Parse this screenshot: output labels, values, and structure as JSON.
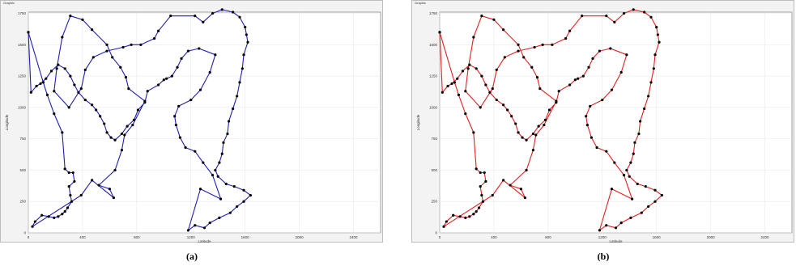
{
  "chart_data": [
    {
      "type": "line",
      "panel_title": "Graphic",
      "caption": "(a)",
      "xlabel": "Latitude",
      "ylabel": "Longitude",
      "xlim": [
        0,
        2600
      ],
      "ylim": [
        0,
        1760
      ],
      "xticks": [
        "0",
        "400",
        "800",
        "1200",
        "1600",
        "2000",
        "2400",
        "2800"
      ],
      "xtick_values": [
        0,
        400,
        800,
        1200,
        1600,
        2000,
        2400,
        2800
      ],
      "yticks": [
        "0",
        "250",
        "500",
        "750",
        "1000",
        "1250",
        "1500",
        "1750"
      ],
      "ytick_values": [
        0,
        250,
        500,
        750,
        1000,
        1250,
        1500,
        1750
      ],
      "grid": true,
      "line_color": "#1f1fb0",
      "route": [
        [
          0,
          1600
        ],
        [
          110,
          1200
        ],
        [
          140,
          1100
        ],
        [
          190,
          950
        ],
        [
          250,
          800
        ],
        [
          270,
          510
        ],
        [
          300,
          480
        ],
        [
          330,
          480
        ],
        [
          340,
          410
        ],
        [
          300,
          370
        ],
        [
          310,
          300
        ],
        [
          320,
          250
        ],
        [
          290,
          200
        ],
        [
          270,
          170
        ],
        [
          250,
          150
        ],
        [
          220,
          130
        ],
        [
          190,
          120
        ],
        [
          150,
          130
        ],
        [
          100,
          140
        ],
        [
          50,
          90
        ],
        [
          30,
          50
        ],
        [
          390,
          300
        ],
        [
          470,
          420
        ],
        [
          630,
          280
        ],
        [
          600,
          350
        ],
        [
          520,
          380
        ],
        [
          640,
          500
        ],
        [
          690,
          660
        ],
        [
          710,
          780
        ],
        [
          770,
          860
        ],
        [
          860,
          1050
        ],
        [
          740,
          1150
        ],
        [
          720,
          1240
        ],
        [
          680,
          1320
        ],
        [
          620,
          1400
        ],
        [
          580,
          1500
        ],
        [
          470,
          1620
        ],
        [
          400,
          1700
        ],
        [
          310,
          1730
        ],
        [
          250,
          1560
        ],
        [
          210,
          1310
        ],
        [
          190,
          1130
        ],
        [
          300,
          1000
        ],
        [
          390,
          1150
        ],
        [
          420,
          1300
        ],
        [
          480,
          1400
        ],
        [
          580,
          1450
        ],
        [
          700,
          1480
        ],
        [
          760,
          1500
        ],
        [
          830,
          1500
        ],
        [
          930,
          1550
        ],
        [
          960,
          1610
        ],
        [
          1050,
          1730
        ],
        [
          1230,
          1730
        ],
        [
          1290,
          1680
        ],
        [
          1360,
          1750
        ],
        [
          1430,
          1780
        ],
        [
          1510,
          1760
        ],
        [
          1560,
          1720
        ],
        [
          1600,
          1640
        ],
        [
          1610,
          1580
        ],
        [
          1620,
          1520
        ],
        [
          1590,
          1420
        ],
        [
          1580,
          1310
        ],
        [
          1560,
          1200
        ],
        [
          1540,
          1090
        ],
        [
          1510,
          990
        ],
        [
          1480,
          890
        ],
        [
          1470,
          790
        ],
        [
          1440,
          720
        ],
        [
          1430,
          630
        ],
        [
          1410,
          560
        ],
        [
          1380,
          500
        ],
        [
          1400,
          450
        ],
        [
          1460,
          390
        ],
        [
          1520,
          370
        ],
        [
          1590,
          340
        ],
        [
          1640,
          300
        ],
        [
          1590,
          250
        ],
        [
          1540,
          210
        ],
        [
          1490,
          160
        ],
        [
          1410,
          120
        ],
        [
          1340,
          80
        ],
        [
          1300,
          40
        ],
        [
          1230,
          60
        ],
        [
          1180,
          20
        ],
        [
          1270,
          350
        ],
        [
          1420,
          270
        ],
        [
          1360,
          460
        ],
        [
          1290,
          560
        ],
        [
          1230,
          650
        ],
        [
          1160,
          680
        ],
        [
          1120,
          760
        ],
        [
          1090,
          860
        ],
        [
          1080,
          930
        ],
        [
          1110,
          1010
        ],
        [
          1200,
          1060
        ],
        [
          1270,
          1140
        ],
        [
          1340,
          1280
        ],
        [
          1380,
          1420
        ],
        [
          1260,
          1470
        ],
        [
          1180,
          1450
        ],
        [
          1130,
          1390
        ],
        [
          1100,
          1320
        ],
        [
          1060,
          1250
        ],
        [
          1020,
          1230
        ],
        [
          1000,
          1220
        ],
        [
          960,
          1180
        ],
        [
          880,
          1130
        ],
        [
          860,
          1040
        ],
        [
          810,
          980
        ],
        [
          780,
          900
        ],
        [
          730,
          850
        ],
        [
          690,
          790
        ],
        [
          640,
          740
        ],
        [
          610,
          760
        ],
        [
          580,
          800
        ],
        [
          560,
          870
        ],
        [
          530,
          930
        ],
        [
          500,
          980
        ],
        [
          470,
          1020
        ],
        [
          420,
          1060
        ],
        [
          370,
          1120
        ],
        [
          340,
          1180
        ],
        [
          310,
          1250
        ],
        [
          270,
          1310
        ],
        [
          220,
          1340
        ],
        [
          170,
          1290
        ],
        [
          130,
          1230
        ],
        [
          90,
          1190
        ],
        [
          60,
          1170
        ],
        [
          20,
          1120
        ],
        [
          0,
          1600
        ]
      ]
    },
    {
      "type": "line",
      "panel_title": "Graphic",
      "caption": "(b)",
      "xlabel": "Latitude",
      "ylabel": "Longitude",
      "xlim": [
        0,
        2600
      ],
      "ylim": [
        0,
        1760
      ],
      "xticks": [
        "0",
        "400",
        "800",
        "1200",
        "1600",
        "2000",
        "2400",
        "2800"
      ],
      "xtick_values": [
        0,
        400,
        800,
        1200,
        1600,
        2000,
        2400,
        2800
      ],
      "yticks": [
        "0",
        "250",
        "500",
        "750",
        "1000",
        "1250",
        "1500",
        "1750"
      ],
      "ytick_values": [
        0,
        250,
        500,
        750,
        1000,
        1250,
        1500,
        1750
      ],
      "grid": true,
      "line_color": "#e02020",
      "route": [
        [
          0,
          1600
        ],
        [
          110,
          1200
        ],
        [
          140,
          1100
        ],
        [
          190,
          950
        ],
        [
          250,
          800
        ],
        [
          270,
          510
        ],
        [
          300,
          480
        ],
        [
          330,
          480
        ],
        [
          340,
          410
        ],
        [
          300,
          370
        ],
        [
          310,
          300
        ],
        [
          320,
          250
        ],
        [
          290,
          200
        ],
        [
          270,
          170
        ],
        [
          250,
          150
        ],
        [
          220,
          130
        ],
        [
          190,
          120
        ],
        [
          150,
          130
        ],
        [
          100,
          140
        ],
        [
          50,
          90
        ],
        [
          30,
          50
        ],
        [
          390,
          300
        ],
        [
          470,
          420
        ],
        [
          630,
          280
        ],
        [
          600,
          350
        ],
        [
          520,
          380
        ],
        [
          640,
          500
        ],
        [
          690,
          660
        ],
        [
          710,
          780
        ],
        [
          770,
          860
        ],
        [
          860,
          1050
        ],
        [
          740,
          1150
        ],
        [
          720,
          1240
        ],
        [
          680,
          1320
        ],
        [
          620,
          1400
        ],
        [
          580,
          1500
        ],
        [
          470,
          1620
        ],
        [
          400,
          1700
        ],
        [
          310,
          1730
        ],
        [
          250,
          1560
        ],
        [
          210,
          1310
        ],
        [
          190,
          1130
        ],
        [
          300,
          1000
        ],
        [
          390,
          1150
        ],
        [
          420,
          1300
        ],
        [
          480,
          1400
        ],
        [
          580,
          1450
        ],
        [
          700,
          1480
        ],
        [
          760,
          1500
        ],
        [
          830,
          1500
        ],
        [
          930,
          1550
        ],
        [
          960,
          1610
        ],
        [
          1050,
          1730
        ],
        [
          1230,
          1730
        ],
        [
          1290,
          1680
        ],
        [
          1360,
          1750
        ],
        [
          1430,
          1780
        ],
        [
          1510,
          1760
        ],
        [
          1560,
          1720
        ],
        [
          1600,
          1640
        ],
        [
          1610,
          1580
        ],
        [
          1620,
          1520
        ],
        [
          1590,
          1420
        ],
        [
          1580,
          1310
        ],
        [
          1560,
          1200
        ],
        [
          1540,
          1090
        ],
        [
          1510,
          990
        ],
        [
          1480,
          890
        ],
        [
          1470,
          790
        ],
        [
          1440,
          720
        ],
        [
          1430,
          630
        ],
        [
          1410,
          560
        ],
        [
          1380,
          500
        ],
        [
          1400,
          450
        ],
        [
          1460,
          390
        ],
        [
          1520,
          370
        ],
        [
          1590,
          340
        ],
        [
          1640,
          300
        ],
        [
          1590,
          250
        ],
        [
          1540,
          210
        ],
        [
          1490,
          160
        ],
        [
          1410,
          120
        ],
        [
          1340,
          80
        ],
        [
          1300,
          40
        ],
        [
          1230,
          60
        ],
        [
          1180,
          20
        ],
        [
          1270,
          350
        ],
        [
          1420,
          270
        ],
        [
          1360,
          460
        ],
        [
          1290,
          560
        ],
        [
          1230,
          650
        ],
        [
          1160,
          680
        ],
        [
          1120,
          760
        ],
        [
          1090,
          860
        ],
        [
          1080,
          930
        ],
        [
          1110,
          1010
        ],
        [
          1200,
          1060
        ],
        [
          1270,
          1140
        ],
        [
          1340,
          1280
        ],
        [
          1380,
          1420
        ],
        [
          1260,
          1470
        ],
        [
          1180,
          1450
        ],
        [
          1130,
          1390
        ],
        [
          1100,
          1320
        ],
        [
          1060,
          1250
        ],
        [
          1020,
          1230
        ],
        [
          1000,
          1220
        ],
        [
          960,
          1180
        ],
        [
          880,
          1130
        ],
        [
          860,
          1040
        ],
        [
          810,
          980
        ],
        [
          780,
          900
        ],
        [
          730,
          850
        ],
        [
          690,
          790
        ],
        [
          640,
          740
        ],
        [
          610,
          760
        ],
        [
          580,
          800
        ],
        [
          560,
          870
        ],
        [
          530,
          930
        ],
        [
          500,
          980
        ],
        [
          470,
          1020
        ],
        [
          420,
          1060
        ],
        [
          370,
          1120
        ],
        [
          340,
          1180
        ],
        [
          310,
          1250
        ],
        [
          270,
          1310
        ],
        [
          220,
          1340
        ],
        [
          170,
          1290
        ],
        [
          130,
          1230
        ],
        [
          90,
          1190
        ],
        [
          60,
          1170
        ],
        [
          20,
          1120
        ],
        [
          0,
          1600
        ]
      ]
    }
  ]
}
